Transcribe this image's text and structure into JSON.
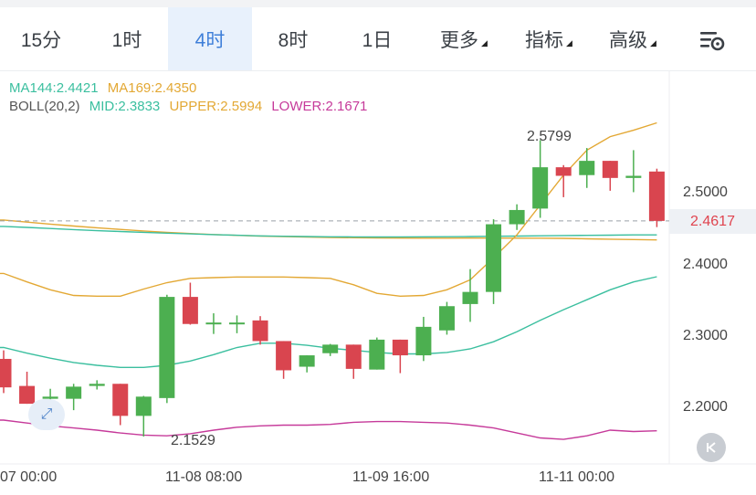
{
  "tabs": [
    {
      "label": "15分",
      "active": false
    },
    {
      "label": "1时",
      "active": false
    },
    {
      "label": "4时",
      "active": true
    },
    {
      "label": "8时",
      "active": false
    },
    {
      "label": "1日",
      "active": false
    },
    {
      "label": "更多",
      "active": false,
      "dropdown": true
    },
    {
      "label": "指标",
      "active": false,
      "dropdown": true
    },
    {
      "label": "高级",
      "active": false,
      "dropdown": true
    }
  ],
  "legend": {
    "ma144": "MA144:2.4421",
    "ma169": "MA169:2.4350",
    "boll_name": "BOLL(20,2)",
    "boll_mid": "MID:2.3833",
    "boll_upper": "UPPER:2.5994",
    "boll_lower": "LOWER:2.1671"
  },
  "colors": {
    "up": "#4caf50",
    "down": "#d9454f",
    "ma144": "#3bbf9f",
    "ma169": "#e3a834",
    "upper": "#e3a834",
    "mid": "#3bbf9f",
    "lower": "#c63a9a",
    "active_tab": "#3e7fd9"
  },
  "icons": {
    "settings": "chart-settings-icon",
    "back": "scroll-to-latest-icon",
    "expand": "expand-icon"
  },
  "annotations": {
    "high": "2.5799",
    "low": "2.1529"
  },
  "current_price": "2.4617",
  "chart_data": {
    "type": "candlestick",
    "y_ticks": [
      "2.5000",
      "2.4000",
      "2.3000",
      "2.2000"
    ],
    "x_ticks": [
      "11-07 00:00",
      "11-08 08:00",
      "11-09 16:00",
      "11-11 00:00"
    ],
    "ylim": [
      2.139,
      2.6
    ],
    "candles": [
      {
        "o": 2.268,
        "h": 2.28,
        "l": 2.22,
        "c": 2.228
      },
      {
        "o": 2.23,
        "h": 2.25,
        "l": 2.205,
        "c": 2.205
      },
      {
        "o": 2.212,
        "h": 2.226,
        "l": 2.199,
        "c": 2.215
      },
      {
        "o": 2.212,
        "h": 2.233,
        "l": 2.196,
        "c": 2.229
      },
      {
        "o": 2.23,
        "h": 2.238,
        "l": 2.225,
        "c": 2.233
      },
      {
        "o": 2.233,
        "h": 2.233,
        "l": 2.175,
        "c": 2.188
      },
      {
        "o": 2.188,
        "h": 2.216,
        "l": 2.159,
        "c": 2.215
      },
      {
        "o": 2.213,
        "h": 2.358,
        "l": 2.206,
        "c": 2.355
      },
      {
        "o": 2.355,
        "h": 2.375,
        "l": 2.316,
        "c": 2.317
      },
      {
        "o": 2.317,
        "h": 2.332,
        "l": 2.303,
        "c": 2.319
      },
      {
        "o": 2.319,
        "h": 2.329,
        "l": 2.304,
        "c": 2.319
      },
      {
        "o": 2.322,
        "h": 2.328,
        "l": 2.288,
        "c": 2.293
      },
      {
        "o": 2.293,
        "h": 2.293,
        "l": 2.24,
        "c": 2.252
      },
      {
        "o": 2.257,
        "h": 2.273,
        "l": 2.249,
        "c": 2.273
      },
      {
        "o": 2.276,
        "h": 2.289,
        "l": 2.272,
        "c": 2.288
      },
      {
        "o": 2.288,
        "h": 2.288,
        "l": 2.24,
        "c": 2.254
      },
      {
        "o": 2.253,
        "h": 2.298,
        "l": 2.253,
        "c": 2.295
      },
      {
        "o": 2.295,
        "h": 2.295,
        "l": 2.248,
        "c": 2.273
      },
      {
        "o": 2.273,
        "h": 2.327,
        "l": 2.265,
        "c": 2.313
      },
      {
        "o": 2.308,
        "h": 2.348,
        "l": 2.302,
        "c": 2.342
      },
      {
        "o": 2.345,
        "h": 2.394,
        "l": 2.32,
        "c": 2.362
      },
      {
        "o": 2.362,
        "h": 2.464,
        "l": 2.345,
        "c": 2.457
      },
      {
        "o": 2.457,
        "h": 2.485,
        "l": 2.449,
        "c": 2.477
      },
      {
        "o": 2.479,
        "h": 2.575,
        "l": 2.466,
        "c": 2.537
      },
      {
        "o": 2.537,
        "h": 2.54,
        "l": 2.495,
        "c": 2.525
      },
      {
        "o": 2.526,
        "h": 2.564,
        "l": 2.508,
        "c": 2.546
      },
      {
        "o": 2.546,
        "h": 2.546,
        "l": 2.504,
        "c": 2.522
      },
      {
        "o": 2.522,
        "h": 2.561,
        "l": 2.502,
        "c": 2.525
      },
      {
        "o": 2.531,
        "h": 2.535,
        "l": 2.453,
        "c": 2.4617
      }
    ],
    "ma144": [
      2.454,
      2.4525,
      2.451,
      2.4495,
      2.448,
      2.4468,
      2.4456,
      2.4445,
      2.4434,
      2.4424,
      2.4415,
      2.4407,
      2.4401,
      2.4397,
      2.4394,
      2.4392,
      2.4391,
      2.4392,
      2.4393,
      2.4395,
      2.4398,
      2.4401,
      2.4404,
      2.4408,
      2.4411,
      2.4414,
      2.4417,
      2.442,
      2.4421
    ],
    "ma169": [
      2.463,
      2.46,
      2.4572,
      2.4545,
      2.452,
      2.4497,
      2.4476,
      2.4457,
      2.444,
      2.4426,
      2.4414,
      2.4404,
      2.4396,
      2.439,
      2.4385,
      2.4381,
      2.4378,
      2.4376,
      2.4375,
      2.4375,
      2.4376,
      2.4376,
      2.4375,
      2.4374,
      2.4372,
      2.4366,
      2.436,
      2.4355,
      2.435
    ],
    "boll_mid": [
      2.284,
      2.276,
      2.269,
      2.263,
      2.259,
      2.256,
      2.256,
      2.259,
      2.265,
      2.274,
      2.284,
      2.29,
      2.29,
      2.287,
      2.283,
      2.28,
      2.277,
      2.275,
      2.275,
      2.277,
      2.282,
      2.292,
      2.306,
      2.322,
      2.337,
      2.351,
      2.365,
      2.376,
      2.3833
    ],
    "boll_upper": [
      2.388,
      2.376,
      2.365,
      2.357,
      2.356,
      2.356,
      2.366,
      2.375,
      2.381,
      2.382,
      2.383,
      2.383,
      2.383,
      2.382,
      2.381,
      2.372,
      2.36,
      2.356,
      2.357,
      2.365,
      2.379,
      2.41,
      2.442,
      2.484,
      2.526,
      2.561,
      2.58,
      2.589,
      2.5994
    ],
    "boll_lower": [
      2.182,
      2.178,
      2.174,
      2.171,
      2.168,
      2.164,
      2.161,
      2.16,
      2.163,
      2.168,
      2.172,
      2.174,
      2.175,
      2.175,
      2.176,
      2.179,
      2.18,
      2.18,
      2.179,
      2.178,
      2.175,
      2.171,
      2.164,
      2.157,
      2.155,
      2.16,
      2.168,
      2.166,
      2.1671
    ]
  }
}
